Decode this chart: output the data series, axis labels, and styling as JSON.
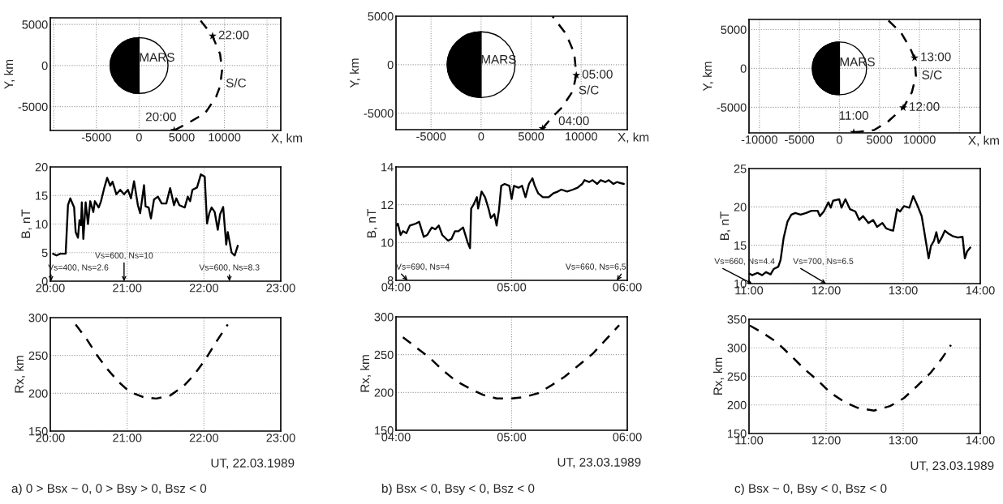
{
  "chart_data": [
    {
      "type": "line",
      "xlabel": "X, km",
      "ylabel": "Y, km",
      "xlim": [
        -10400,
        16600
      ],
      "ylim": [
        -7900,
        5800
      ],
      "xticks": [
        {
          "value": -10000,
          "label": null
        },
        -5000,
        0,
        5000,
        10000,
        {
          "value": 15000,
          "label": null
        }
      ],
      "yticks": [
        -5000,
        0,
        5000
      ],
      "grid": true,
      "series": [
        {
          "color": "#000000",
          "line_style": "dashed",
          "x": [
            4110,
            5860,
            7750,
            9020,
            9490,
            9720,
            9490,
            8550,
            6960
          ],
          "values": [
            -7880,
            -6930,
            -5780,
            -3820,
            -2520,
            -560,
            1400,
            3690,
            5780
          ]
        },
        {
          "type": "scatter",
          "color": "#000000",
          "marker": "star",
          "x": [
            4110,
            8610
          ],
          "values": [
            -7880,
            3590
          ]
        }
      ],
      "annotations": [
        "MARS",
        {
          "text": "22:00",
          "x": 8610,
          "y": 3590
        },
        {
          "text": "S/C",
          "x": 9490,
          "y": -2520
        },
        {
          "text": "20:00",
          "x": 4110,
          "y": -7880
        }
      ]
    },
    {
      "type": "line",
      "ylabel": "B, nT",
      "xlim": [
        20,
        23
      ],
      "ylim": [
        0,
        20
      ],
      "xticks": [
        {
          "value": 20,
          "label": "20:00"
        },
        {
          "value": 21,
          "label": "21:00"
        },
        {
          "value": 22,
          "label": "22:00"
        },
        {
          "value": 23,
          "label": "23:00"
        }
      ],
      "yticks": [
        0,
        5,
        10,
        15,
        20
      ],
      "grid": true,
      "series": [
        {
          "color": "#000000",
          "line_style": "solid",
          "x": [
            20.035,
            20.08,
            20.13,
            20.2,
            20.23,
            20.26,
            20.31,
            20.33,
            20.36,
            20.38,
            20.4,
            20.41,
            20.43,
            20.46,
            20.49,
            20.52,
            20.56,
            20.58,
            20.63,
            20.66,
            20.7,
            20.74,
            20.78,
            20.81,
            20.86,
            20.91,
            20.96,
            21.01,
            21.05,
            21.09,
            21.14,
            21.17,
            21.22,
            21.24,
            21.28,
            21.31,
            21.35,
            21.4,
            21.45,
            21.51,
            21.56,
            21.61,
            21.64,
            21.68,
            21.75,
            21.79,
            21.82,
            21.85,
            21.91,
            21.96,
            22.01,
            22.04,
            22.07,
            22.1,
            22.14,
            22.18,
            22.21,
            22.25,
            22.29,
            22.31,
            22.36,
            22.4,
            22.44
          ],
          "values": [
            4.8,
            4.5,
            4.8,
            4.8,
            13.3,
            14.5,
            12.9,
            8.6,
            7.6,
            10.7,
            9.8,
            13.8,
            7.4,
            13.8,
            10.0,
            14.0,
            12.1,
            14.0,
            12.9,
            14.0,
            16.2,
            18.1,
            16.7,
            17.4,
            15.2,
            16.0,
            15.2,
            16.0,
            14.5,
            17.5,
            13.3,
            11.9,
            16.8,
            13.1,
            12.9,
            11.0,
            14.3,
            14.8,
            13.6,
            13.6,
            16.3,
            13.3,
            14.5,
            13.3,
            12.9,
            14.8,
            14.0,
            16.0,
            16.4,
            18.7,
            18.3,
            10.1,
            11.9,
            12.9,
            12.1,
            9.0,
            11.7,
            13.0,
            6.4,
            8.6,
            5.0,
            4.5,
            6.2
          ]
        }
      ],
      "annotations": [
        "Vs=400, Ns=2.6",
        "Vs=600, Ns=10",
        "Vs=600, Ns=8.3"
      ]
    },
    {
      "type": "line",
      "xlabel": "UT, 22.03.1989",
      "ylabel": "Rx, km",
      "xlim": [
        20,
        23
      ],
      "ylim": [
        150,
        300
      ],
      "xticks": [
        {
          "value": 20,
          "label": "20:00"
        },
        {
          "value": 21,
          "label": "21:00"
        },
        {
          "value": 22,
          "label": "22:00"
        },
        {
          "value": 23,
          "label": "23:00"
        }
      ],
      "yticks": [
        150,
        200,
        250,
        300
      ],
      "grid": true,
      "series": [
        {
          "color": "#000000",
          "line_style": "dashed",
          "x": [
            20.33,
            20.47,
            20.61,
            20.75,
            20.89,
            21.03,
            21.21,
            21.38,
            21.56,
            21.73,
            21.87,
            22.02,
            22.16,
            22.31
          ],
          "values": [
            291,
            272,
            250,
            231,
            215,
            202,
            195,
            193,
            197,
            209,
            224,
            245,
            268,
            291
          ]
        }
      ],
      "annotations": [
        "a) 0 > Bsx ~ 0, 0 > Bsy > 0, Bsz < 0"
      ]
    },
    {
      "type": "line",
      "xlabel": "X, km",
      "ylabel": "Y, km",
      "xlim": [
        -8500,
        14600
      ],
      "ylim": [
        -6700,
        5000
      ],
      "xticks": [
        -5000,
        0,
        5000,
        10000
      ],
      "yticks": [
        -5000,
        0,
        5000
      ],
      "grid": true,
      "series": [
        {
          "color": "#000000",
          "line_style": "dashed",
          "x": [
            6140,
            7000,
            8080,
            9160,
            9510,
            9300,
            8490,
            7140
          ],
          "values": [
            -6580,
            -5520,
            -4400,
            -2720,
            -1040,
            1200,
            3160,
            4980
          ]
        },
        {
          "type": "scatter",
          "color": "#000000",
          "marker": "star",
          "x": [
            6140,
            9510
          ],
          "values": [
            -6580,
            -1090
          ]
        }
      ],
      "annotations": [
        "MARS",
        {
          "text": "05:00",
          "x": 9510,
          "y": -1090
        },
        {
          "text": "S/C",
          "x": 9160,
          "y": -2720
        },
        {
          "text": "04:00",
          "x": 6140,
          "y": -6580
        }
      ]
    },
    {
      "type": "line",
      "ylabel": "B, nT",
      "xlim": [
        4,
        6
      ],
      "ylim": [
        8,
        14
      ],
      "xticks": [
        {
          "value": 4,
          "label": "04:00"
        },
        {
          "value": 5,
          "label": "05:00"
        },
        {
          "value": 6,
          "label": "06:00"
        }
      ],
      "yticks": [
        8,
        10,
        12,
        14
      ],
      "grid": true,
      "series": [
        {
          "color": "#000000",
          "line_style": "solid",
          "x": [
            4.005,
            4.016,
            4.04,
            4.06,
            4.09,
            4.12,
            4.17,
            4.2,
            4.24,
            4.27,
            4.31,
            4.34,
            4.37,
            4.4,
            4.45,
            4.48,
            4.51,
            4.54,
            4.58,
            4.62,
            4.64,
            4.65,
            4.67,
            4.7,
            4.71,
            4.74,
            4.77,
            4.8,
            4.82,
            4.85,
            4.87,
            4.89,
            4.91,
            4.94,
            4.98,
            5.0,
            5.02,
            5.06,
            5.09,
            5.12,
            5.15,
            5.18,
            5.2,
            5.23,
            5.27,
            5.32,
            5.34,
            5.36,
            5.4,
            5.43,
            5.48,
            5.53,
            5.57,
            5.61,
            5.63,
            5.67,
            5.7,
            5.74,
            5.77,
            5.81,
            5.84,
            5.88,
            5.91,
            5.97
          ],
          "values": [
            10.9,
            11.0,
            10.4,
            10.6,
            10.5,
            10.9,
            11.0,
            11.1,
            10.3,
            10.4,
            10.8,
            10.7,
            10.9,
            10.4,
            10.1,
            10.2,
            10.6,
            10.6,
            10.8,
            10.0,
            9.7,
            11.8,
            12.0,
            12.4,
            11.8,
            12.7,
            12.4,
            11.8,
            11.3,
            11.5,
            10.9,
            11.7,
            13.0,
            13.1,
            13.0,
            12.3,
            13.0,
            12.9,
            13.0,
            12.4,
            13.1,
            13.4,
            13.0,
            12.6,
            12.4,
            12.4,
            12.5,
            12.6,
            12.7,
            12.8,
            12.7,
            12.8,
            12.9,
            13.1,
            13.3,
            13.2,
            13.3,
            13.1,
            13.3,
            13.2,
            13.3,
            13.1,
            13.2,
            13.1
          ]
        }
      ],
      "annotations": [
        "Vs=690, Ns=4",
        "Vs=660, Ns=6,5"
      ]
    },
    {
      "type": "line",
      "xlabel": "UT, 23.03.1989",
      "ylabel": "Rx, km",
      "xlim": [
        4,
        6
      ],
      "ylim": [
        150,
        300
      ],
      "xticks": [
        {
          "value": 4,
          "label": "04:00"
        },
        {
          "value": 5,
          "label": "05:00"
        },
        {
          "value": 6,
          "label": "06:00"
        }
      ],
      "yticks": [
        150,
        200,
        250,
        300
      ],
      "grid": true,
      "series": [
        {
          "color": "#000000",
          "line_style": "dashed",
          "x": [
            4.06,
            4.17,
            4.29,
            4.4,
            4.52,
            4.64,
            4.75,
            4.87,
            5.0,
            5.11,
            5.23,
            5.34,
            5.46,
            5.58,
            5.7,
            5.81,
            5.93
          ],
          "values": [
            273,
            260,
            246,
            230,
            215,
            205,
            197,
            192,
            192,
            194,
            199,
            209,
            221,
            236,
            251,
            269,
            289
          ]
        }
      ],
      "annotations": [
        "b) Bsx < 0, Bsy < 0, Bsz < 0"
      ]
    },
    {
      "type": "line",
      "xlabel": "X, km",
      "ylabel": "Y, km",
      "xlim": [
        -11300,
        17600
      ],
      "ylim": [
        -8300,
        6300
      ],
      "xticks": [
        -10000,
        -5000,
        0,
        5000,
        10000,
        {
          "value": 15000,
          "label": null
        }
      ],
      "yticks": [
        -5000,
        0,
        5000
      ],
      "grid": true,
      "series": [
        {
          "color": "#000000",
          "line_style": "dashed",
          "x": [
            1790,
            4320,
            6010,
            8040,
            9050,
            9560,
            9390,
            8880,
            7700,
            6010
          ],
          "values": [
            -8240,
            -7940,
            -6900,
            -4980,
            -3070,
            -980,
            1290,
            2510,
            4600,
            6270
          ]
        },
        {
          "type": "scatter",
          "color": "#000000",
          "marker": "star",
          "x": [
            1790,
            7970,
            9390
          ],
          "values": [
            -8240,
            -5050,
            1360
          ]
        }
      ],
      "annotations": [
        "MARS",
        {
          "text": "13:00",
          "x": 9390,
          "y": 1360
        },
        {
          "text": "S/C",
          "x": 9560,
          "y": -980
        },
        {
          "text": "12:00",
          "x": 7970,
          "y": -5050
        },
        {
          "text": "11:00",
          "x": 1790,
          "y": -8240
        }
      ]
    },
    {
      "type": "line",
      "ylabel": "B, nT",
      "xlim": [
        11,
        14
      ],
      "ylim": [
        10,
        25
      ],
      "xticks": [
        {
          "value": 11,
          "label": "11:00"
        },
        {
          "value": 12,
          "label": "12:00"
        },
        {
          "value": 13,
          "label": "13:00"
        },
        {
          "value": 14,
          "label": "14:00"
        }
      ],
      "yticks": [
        10,
        15,
        20,
        25
      ],
      "grid": true,
      "series": [
        {
          "color": "#000000",
          "line_style": "solid",
          "x": [
            11.007,
            11.04,
            11.11,
            11.17,
            11.22,
            11.28,
            11.32,
            11.38,
            11.41,
            11.45,
            11.5,
            11.55,
            11.6,
            11.67,
            11.74,
            11.81,
            11.89,
            11.92,
            11.97,
            12.03,
            12.06,
            12.09,
            12.17,
            12.2,
            12.25,
            12.31,
            12.38,
            12.43,
            12.48,
            12.55,
            12.61,
            12.66,
            12.73,
            12.78,
            12.83,
            12.87,
            12.92,
            12.96,
            13.01,
            13.08,
            13.13,
            13.18,
            13.24,
            13.27,
            13.33,
            13.36,
            13.4,
            13.43,
            13.46,
            13.5,
            13.54,
            13.59,
            13.64,
            13.71,
            13.77,
            13.8,
            13.83,
            13.87
          ],
          "values": [
            11.3,
            11.1,
            11.4,
            11.1,
            11.5,
            11.2,
            11.9,
            12.2,
            13.1,
            16.0,
            18.1,
            19.0,
            19.2,
            19.0,
            19.2,
            19.5,
            19.5,
            18.8,
            19.4,
            20.6,
            19.9,
            20.8,
            21.0,
            19.9,
            21.0,
            19.7,
            19.4,
            18.3,
            18.8,
            17.9,
            18.3,
            17.4,
            17.9,
            17.2,
            17.0,
            16.9,
            19.7,
            19.4,
            20.1,
            19.9,
            21.4,
            20.3,
            18.8,
            17.0,
            13.3,
            14.9,
            15.6,
            16.7,
            15.3,
            16.0,
            16.9,
            16.5,
            16.2,
            16.0,
            16.1,
            13.3,
            14.2,
            14.7
          ]
        }
      ],
      "annotations": [
        "Vs=660, Ns=4.4",
        "Vs=700, Ns=6.5"
      ]
    },
    {
      "type": "line",
      "xlabel": "UT, 23.03.1989",
      "ylabel": "Rx, km",
      "xlim": [
        11,
        14
      ],
      "ylim": [
        150,
        350
      ],
      "xticks": [
        {
          "value": 11,
          "label": "11:00"
        },
        {
          "value": 12,
          "label": "12:00"
        },
        {
          "value": 13,
          "label": "13:00"
        },
        {
          "value": 14,
          "label": "14:00"
        }
      ],
      "yticks": [
        150,
        200,
        250,
        300,
        350
      ],
      "grid": true,
      "series": [
        {
          "color": "#000000",
          "line_style": "dashed",
          "x": [
            11.01,
            11.18,
            11.36,
            11.53,
            11.71,
            11.89,
            12.06,
            12.24,
            12.41,
            12.62,
            12.83,
            13.01,
            13.18,
            13.36,
            13.5,
            13.62
          ],
          "values": [
            339,
            326,
            310,
            288,
            264,
            243,
            221,
            205,
            195,
            190,
            198,
            212,
            233,
            257,
            281,
            305
          ]
        }
      ],
      "annotations": [
        "c) Bsx ~ 0, Bsy < 0, Bsz < 0"
      ]
    }
  ]
}
